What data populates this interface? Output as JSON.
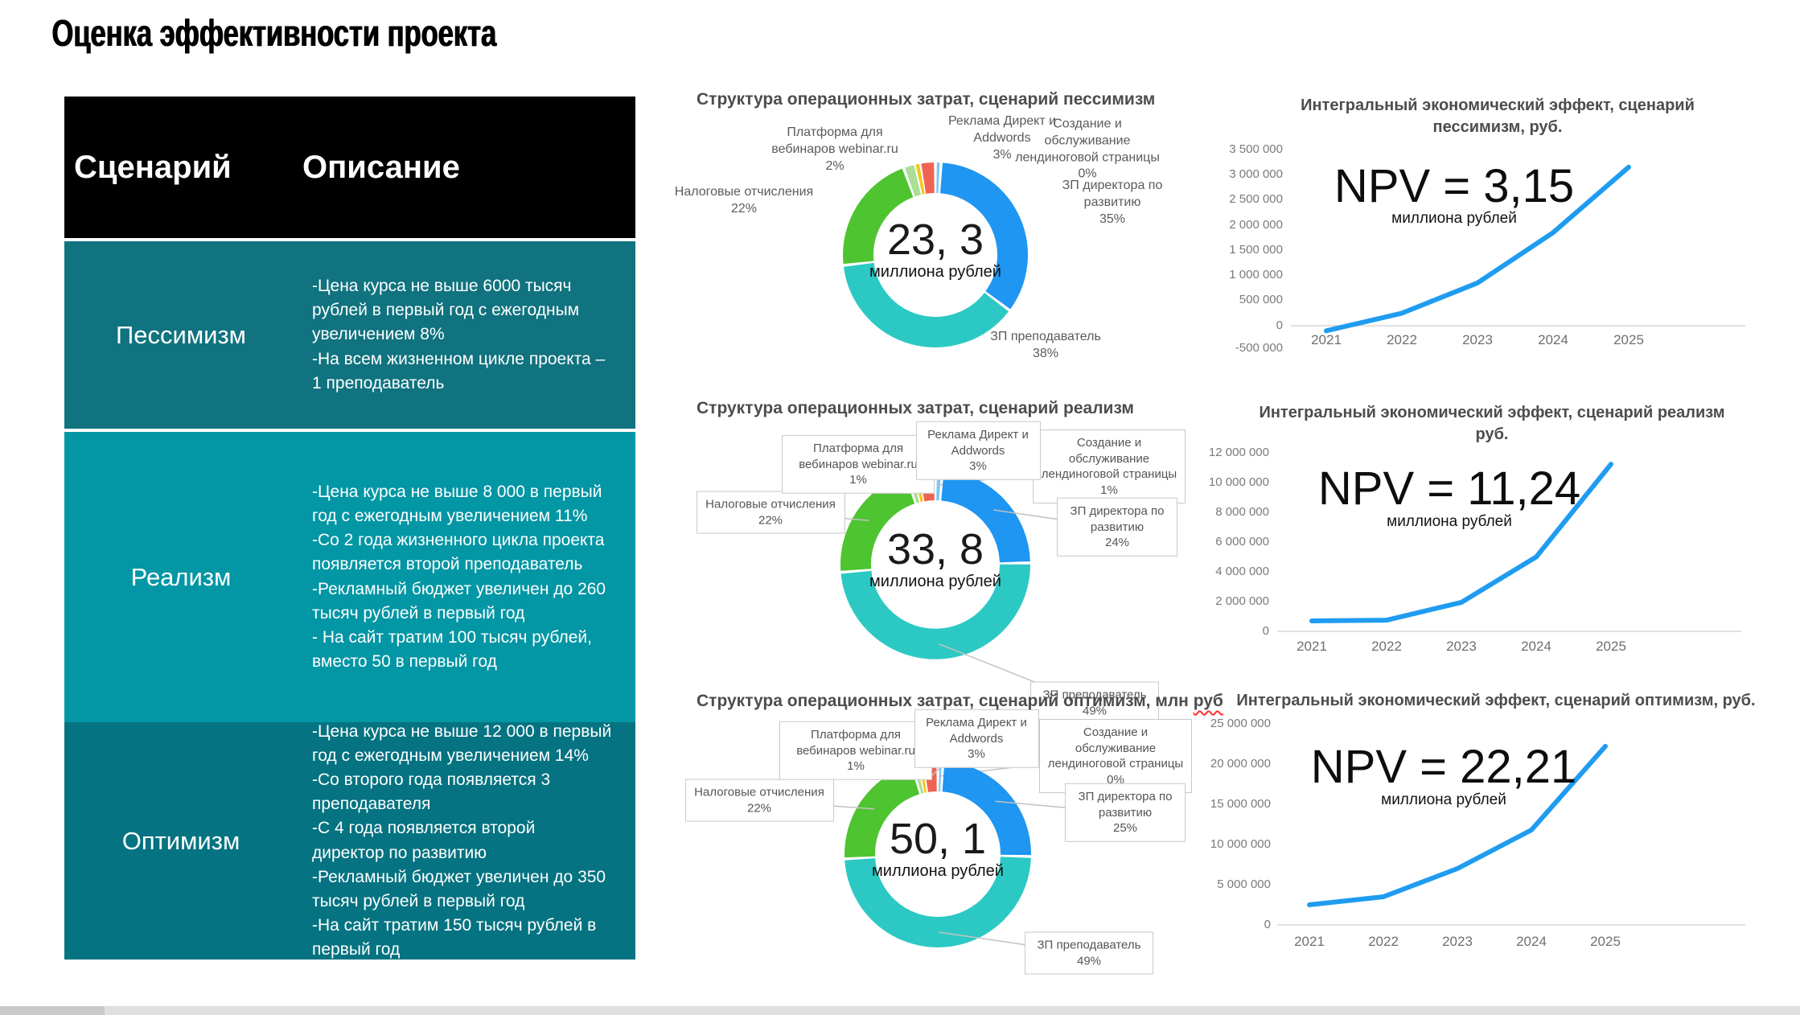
{
  "slide": {
    "title": "Оценка эффективности проекта"
  },
  "table": {
    "headers": [
      "Сценарий",
      "Описание"
    ],
    "row_colors": [
      "#10737f",
      "#0396a4",
      "#057381"
    ],
    "header_color": "#000000",
    "rows": [
      {
        "scenario": "Пессимизм",
        "description": "-Цена курса не выше 6000 тысяч\nрублей в первый год с ежегодным\nувеличением 8%\n-На всем жизненном цикле проекта –\n1 преподаватель"
      },
      {
        "scenario": "Реализм",
        "description": "-Цена курса не выше 8 000 в первый\nгод с ежегодным увеличением 11%\n-Со 2 года жизненного цикла проекта\nпоявляется второй преподаватель\n-Рекламный бюджет увеличен до 260\nтысяч рублей в первый год\n- На сайт тратим 100 тысяч рублей,\nвместо 50 в первый год"
      },
      {
        "scenario": "Оптимизм",
        "description": "-Цена курса не выше 12 000 в первый\nгод с ежегодным увеличением 14%\n-Со второго года появляется 3\nпреподавателя\n-С 4 года появляется второй\nдиректор по развитию\n-Рекламный бюджет увеличен до 350\nтысяч рублей в первый год\n-На сайт тратим 150 тысяч рублей в\nпервый год"
      }
    ]
  },
  "chart_data": [
    {
      "type": "pie",
      "title": "Структура операционных затрат, сценарий пессимизм",
      "center_value": "23, 3",
      "center_unit": "миллиона рублей",
      "legend_position": "around",
      "segments": [
        {
          "label": "Создание и обслуживание лендиноговой страницы",
          "pct": 0,
          "pct_label": "0%",
          "draw_pct": 1.0,
          "color": "#7ec7f2"
        },
        {
          "label": "ЗП директора по развитию",
          "pct": 35,
          "pct_label": "35%",
          "draw_pct": 34.2,
          "color": "#1e96f2"
        },
        {
          "label": "ЗП преподаватель",
          "pct": 38,
          "pct_label": "38%",
          "draw_pct": 38.0,
          "color": "#2cc9c4"
        },
        {
          "label": "Налоговые отчисления",
          "pct": 22,
          "pct_label": "22%",
          "draw_pct": 21.2,
          "color": "#4ec430"
        },
        {
          "label": "Платформа для вебинаров webinar.ru",
          "pct": 2,
          "pct_label": "2%",
          "draw_pct": 2.1,
          "color": "#a9df97"
        },
        {
          "label": "",
          "pct": 0,
          "pct_label": "",
          "draw_pct": 0.8,
          "color": "#f6c71f"
        },
        {
          "label": "Реклама Директ и Addwords",
          "pct": 3,
          "pct_label": "3%",
          "draw_pct": 2.7,
          "color": "#ef6352"
        }
      ]
    },
    {
      "type": "pie",
      "title": "Структура операционных затрат, сценарий реализм",
      "center_value": "33, 8",
      "center_unit": "миллиона рублей",
      "legend_position": "around-boxed",
      "segments": [
        {
          "label": "Создание и обслуживание лендиноговой страницы",
          "pct": 1,
          "pct_label": "1%",
          "draw_pct": 1.2,
          "color": "#7ec7f2"
        },
        {
          "label": "ЗП директора по развитию",
          "pct": 24,
          "pct_label": "24%",
          "draw_pct": 23.5,
          "color": "#1e96f2"
        },
        {
          "label": "ЗП преподаватель",
          "pct": 49,
          "pct_label": "49%",
          "draw_pct": 49.0,
          "color": "#2cc9c4"
        },
        {
          "label": "Налоговые отчисления",
          "pct": 22,
          "pct_label": "22%",
          "draw_pct": 21.3,
          "color": "#4ec430"
        },
        {
          "label": "Платформа для вебинаров webinar.ru",
          "pct": 1,
          "pct_label": "1%",
          "draw_pct": 1.2,
          "color": "#a9df97"
        },
        {
          "label": "",
          "pct": 0,
          "pct_label": "",
          "draw_pct": 0.8,
          "color": "#f6c71f"
        },
        {
          "label": "Реклама Директ и Addwords",
          "pct": 3,
          "pct_label": "3%",
          "draw_pct": 3.0,
          "color": "#ef6352"
        }
      ]
    },
    {
      "type": "pie",
      "title": "Структура операционных затрат, сценарий оптимизм, млн ",
      "title_tail": "руб",
      "center_value": "50, 1",
      "center_unit": "миллиона рублей",
      "legend_position": "around-boxed",
      "segments": [
        {
          "label": "Создание и обслуживание лендиноговой страницы",
          "pct": 0,
          "pct_label": "0%",
          "draw_pct": 0.9,
          "color": "#7ec7f2"
        },
        {
          "label": "ЗП директора по развитию",
          "pct": 25,
          "pct_label": "25%",
          "draw_pct": 24.5,
          "color": "#1e96f2"
        },
        {
          "label": "ЗП преподаватель",
          "pct": 49,
          "pct_label": "49%",
          "draw_pct": 48.8,
          "color": "#2cc9c4"
        },
        {
          "label": "Налоговые отчисления",
          "pct": 22,
          "pct_label": "22%",
          "draw_pct": 21.3,
          "color": "#4ec430"
        },
        {
          "label": "Платформа для вебинаров webinar.ru",
          "pct": 1,
          "pct_label": "1%",
          "draw_pct": 1.1,
          "color": "#a9df97"
        },
        {
          "label": "",
          "pct": 0,
          "pct_label": "",
          "draw_pct": 0.7,
          "color": "#f6c71f"
        },
        {
          "label": "Реклама Директ и Addwords",
          "pct": 3,
          "pct_label": "3%",
          "draw_pct": 2.7,
          "color": "#ef6352"
        }
      ]
    },
    {
      "type": "line",
      "title": "Интегральный экономический эффект, сценарий\nпессимизм, руб.",
      "npv_label": "NPV = 3,15",
      "npv_unit": "миллиона рублей",
      "x": [
        2021,
        2022,
        2023,
        2024,
        2025
      ],
      "y": [
        -100000,
        250000,
        850000,
        1850000,
        3150000
      ],
      "ylim": [
        -500000,
        3500000
      ],
      "ytick_labels": [
        "3 500 000",
        "3 000 000",
        "2 500 000",
        "2 000 000",
        "1 500 000",
        "1 000 000",
        "500 000",
        "0",
        "-500 000"
      ],
      "line_color": "#1f9cf0",
      "grid": false
    },
    {
      "type": "line",
      "title": "Интегральный экономический эффект, сценарий реализм\nруб.",
      "npv_label": "NPV = 11,24",
      "npv_unit": "миллиона рублей",
      "x": [
        2021,
        2022,
        2023,
        2024,
        2025
      ],
      "y": [
        700000,
        750000,
        1950000,
        5000000,
        11240000
      ],
      "ylim": [
        0,
        12000000
      ],
      "ytick_labels": [
        "12 000 000",
        "10 000 000",
        "8 000 000",
        "6 000 000",
        "4 000 000",
        "2 000 000",
        "0"
      ],
      "line_color": "#1f9cf0",
      "grid": false
    },
    {
      "type": "line",
      "title": "Интегральный экономический эффект, сценарий оптимизм,  руб.",
      "npv_label": "NPV = 22,21",
      "npv_unit": "миллиона рублей",
      "x": [
        2021,
        2022,
        2023,
        2024,
        2025
      ],
      "y": [
        2500000,
        3500000,
        7000000,
        11800000,
        22210000
      ],
      "ylim": [
        0,
        25000000
      ],
      "ytick_labels": [
        "25 000 000",
        "20 000 000",
        "15 000 000",
        "10 000 000",
        "5 000 000",
        "0"
      ],
      "line_color": "#1f9cf0",
      "grid": false
    }
  ]
}
